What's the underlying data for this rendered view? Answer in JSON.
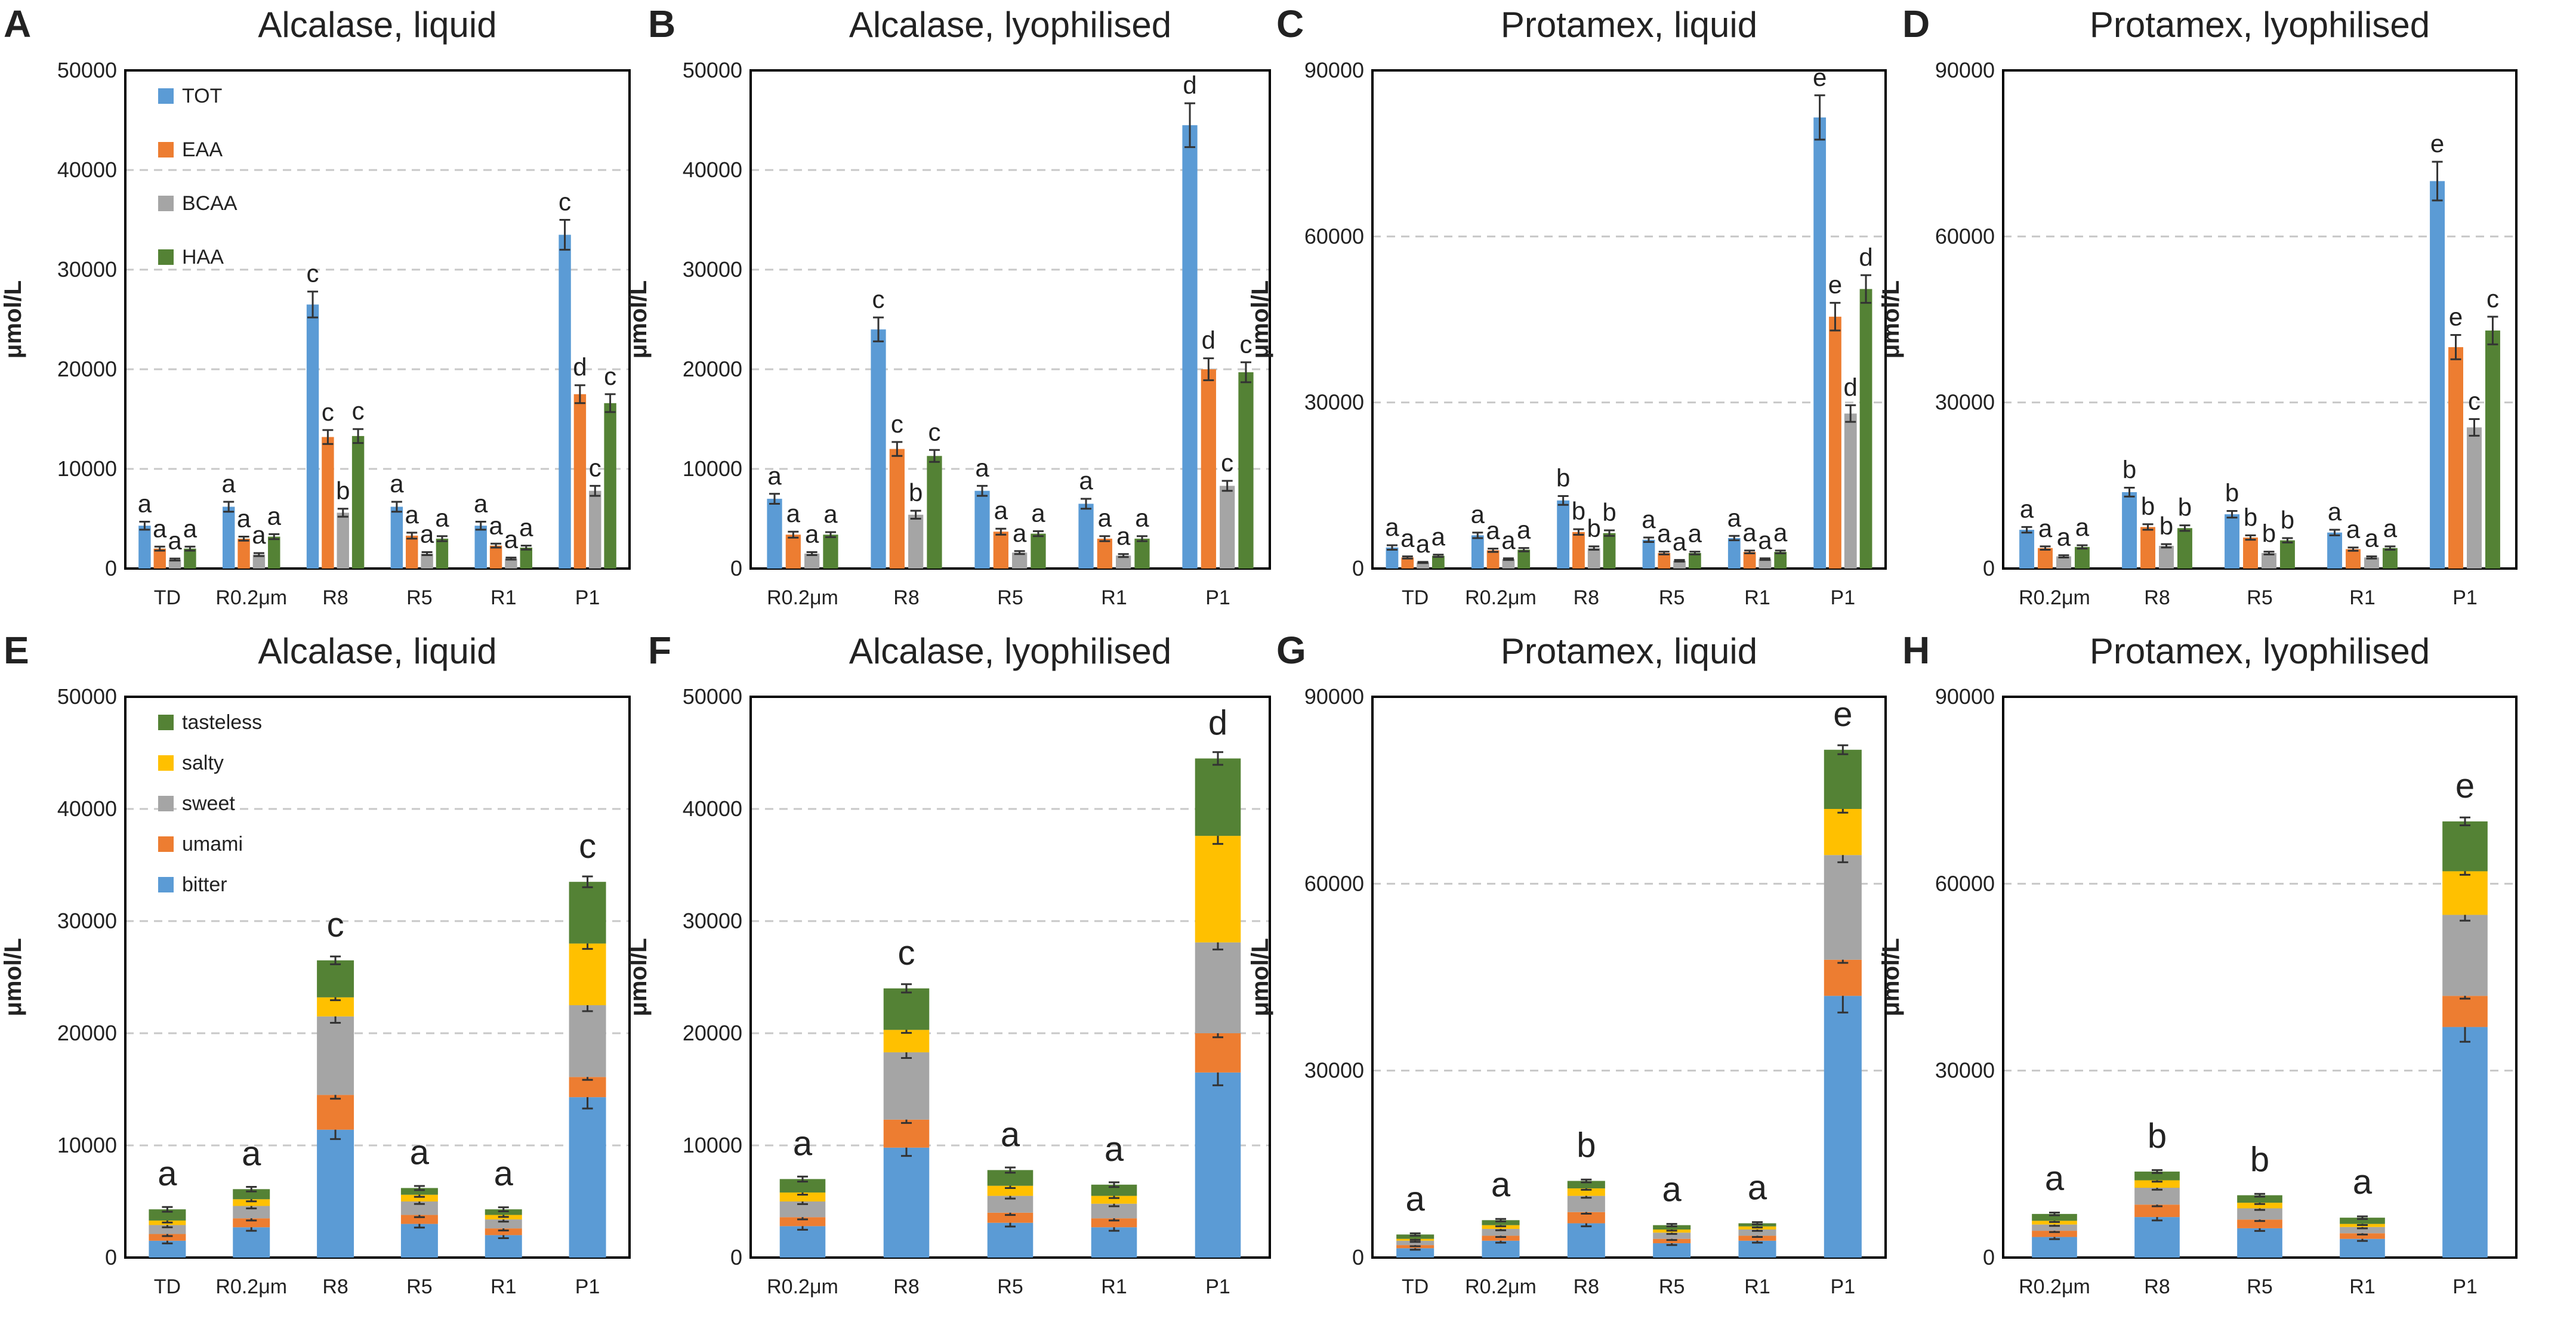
{
  "colors": {
    "TOT": "#5b9bd5",
    "EAA": "#ed7d31",
    "BCAA": "#a5a5a5",
    "HAA": "#548235",
    "tasteless": "#548235",
    "salty": "#ffc000",
    "sweet": "#a5a5a5",
    "umami": "#ed7d31",
    "bitter": "#5b9bd5"
  },
  "chart_data": [
    {
      "panel": "A",
      "type": "bar",
      "title": "Alcalase, liquid",
      "ylabel": "μmol/L",
      "ylim": [
        0,
        50000
      ],
      "yticks": [
        "0",
        "10000",
        "20000",
        "30000",
        "40000",
        "50000"
      ],
      "categories": [
        "TD",
        "R0.2μm",
        "R8",
        "R5",
        "R1",
        "P1"
      ],
      "legend": [
        "TOT",
        "EAA",
        "BCAA",
        "HAA"
      ],
      "series": [
        {
          "name": "TOT",
          "values": [
            4300,
            6200,
            26500,
            6200,
            4300,
            33500
          ],
          "errors": [
            400,
            500,
            1300,
            500,
            400,
            1500
          ]
        },
        {
          "name": "EAA",
          "values": [
            2000,
            3000,
            13200,
            3300,
            2300,
            17500
          ],
          "errors": [
            200,
            200,
            700,
            300,
            200,
            900
          ]
        },
        {
          "name": "BCAA",
          "values": [
            900,
            1400,
            5600,
            1500,
            1000,
            7800
          ],
          "errors": [
            100,
            150,
            400,
            150,
            100,
            500
          ]
        },
        {
          "name": "HAA",
          "values": [
            2000,
            3200,
            13300,
            3000,
            2100,
            16600
          ],
          "errors": [
            200,
            250,
            700,
            250,
            200,
            900
          ]
        }
      ],
      "sig": [
        [
          "a",
          "a",
          "a",
          "a"
        ],
        [
          "a",
          "a",
          "a",
          "a"
        ],
        [
          "c",
          "c",
          "b",
          "c"
        ],
        [
          "a",
          "a",
          "a",
          "a"
        ],
        [
          "a",
          "a",
          "a",
          "a"
        ],
        [
          "c",
          "d",
          "c",
          "c"
        ]
      ]
    },
    {
      "panel": "B",
      "type": "bar",
      "title": "Alcalase, lyophilised",
      "ylabel": "μmol/L",
      "ylim": [
        0,
        50000
      ],
      "yticks": [
        "0",
        "10000",
        "20000",
        "30000",
        "40000",
        "50000"
      ],
      "categories": [
        "R0.2μm",
        "R8",
        "R5",
        "R1",
        "P1"
      ],
      "series": [
        {
          "name": "TOT",
          "values": [
            7000,
            24000,
            7800,
            6500,
            44500
          ],
          "errors": [
            500,
            1200,
            500,
            500,
            2200
          ]
        },
        {
          "name": "EAA",
          "values": [
            3400,
            12000,
            3700,
            3000,
            20000
          ],
          "errors": [
            300,
            700,
            300,
            250,
            1100
          ]
        },
        {
          "name": "BCAA",
          "values": [
            1500,
            5400,
            1600,
            1300,
            8300
          ],
          "errors": [
            150,
            400,
            150,
            150,
            500
          ]
        },
        {
          "name": "HAA",
          "values": [
            3400,
            11300,
            3500,
            3000,
            19700
          ],
          "errors": [
            250,
            600,
            250,
            250,
            1000
          ]
        }
      ],
      "sig": [
        [
          "a",
          "a",
          "a",
          "a"
        ],
        [
          "c",
          "c",
          "b",
          "c"
        ],
        [
          "a",
          "a",
          "a",
          "a"
        ],
        [
          "a",
          "a",
          "a",
          "a"
        ],
        [
          "d",
          "d",
          "c",
          "c"
        ]
      ]
    },
    {
      "panel": "C",
      "type": "bar",
      "title": "Protamex, liquid",
      "ylabel": "μmol/L",
      "ylim": [
        0,
        90000
      ],
      "yticks": [
        "0",
        "30000",
        "60000",
        "90000"
      ],
      "categories": [
        "TD",
        "R0.2μm",
        "R8",
        "R5",
        "R1",
        "P1"
      ],
      "series": [
        {
          "name": "TOT",
          "values": [
            3800,
            6000,
            12300,
            5200,
            5500,
            81500
          ],
          "errors": [
            400,
            500,
            800,
            400,
            400,
            4000
          ]
        },
        {
          "name": "EAA",
          "values": [
            2000,
            3300,
            6600,
            2800,
            3000,
            45500
          ],
          "errors": [
            200,
            300,
            500,
            250,
            250,
            2500
          ]
        },
        {
          "name": "BCAA",
          "values": [
            1100,
            1700,
            3700,
            1400,
            1700,
            28000
          ],
          "errors": [
            100,
            150,
            300,
            150,
            150,
            1500
          ]
        },
        {
          "name": "HAA",
          "values": [
            2300,
            3400,
            6400,
            2800,
            3000,
            50500
          ],
          "errors": [
            200,
            300,
            500,
            250,
            250,
            2500
          ]
        }
      ],
      "sig": [
        [
          "a",
          "a",
          "a",
          "a"
        ],
        [
          "a",
          "a",
          "a",
          "a"
        ],
        [
          "b",
          "b",
          "b",
          "b"
        ],
        [
          "a",
          "a",
          "a",
          "a"
        ],
        [
          "a",
          "a",
          "a",
          "a"
        ],
        [
          "e",
          "e",
          "d",
          "d"
        ]
      ]
    },
    {
      "panel": "D",
      "type": "bar",
      "title": "Protamex, lyophilised",
      "ylabel": "μmol/L",
      "ylim": [
        0,
        90000
      ],
      "yticks": [
        "0",
        "30000",
        "60000",
        "90000"
      ],
      "categories": [
        "R0.2μm",
        "R8",
        "R5",
        "R1",
        "P1"
      ],
      "series": [
        {
          "name": "TOT",
          "values": [
            7000,
            13800,
            9800,
            6500,
            70000
          ],
          "errors": [
            500,
            800,
            600,
            500,
            3500
          ]
        },
        {
          "name": "EAA",
          "values": [
            3700,
            7500,
            5600,
            3500,
            40000
          ],
          "errors": [
            300,
            500,
            400,
            300,
            2200
          ]
        },
        {
          "name": "BCAA",
          "values": [
            2200,
            4100,
            2800,
            2000,
            25500
          ],
          "errors": [
            200,
            300,
            250,
            200,
            1500
          ]
        },
        {
          "name": "HAA",
          "values": [
            3900,
            7300,
            5100,
            3700,
            43000
          ],
          "errors": [
            300,
            500,
            400,
            300,
            2500
          ]
        }
      ],
      "sig": [
        [
          "a",
          "a",
          "a",
          "a"
        ],
        [
          "b",
          "b",
          "b",
          "b"
        ],
        [
          "b",
          "b",
          "b",
          "b"
        ],
        [
          "a",
          "a",
          "a",
          "a"
        ],
        [
          "e",
          "e",
          "c",
          "c"
        ]
      ]
    },
    {
      "panel": "E",
      "type": "stacked-bar",
      "title": "Alcalase, liquid",
      "ylabel": "μmol/L",
      "ylim": [
        0,
        50000
      ],
      "yticks": [
        "0",
        "10000",
        "20000",
        "30000",
        "40000",
        "50000"
      ],
      "categories": [
        "TD",
        "R0.2μm",
        "R8",
        "R5",
        "R1",
        "P1"
      ],
      "legend": [
        "tasteless",
        "salty",
        "sweet",
        "umami",
        "bitter"
      ],
      "series": [
        {
          "name": "bitter",
          "values": [
            1500,
            2700,
            11400,
            3000,
            2000,
            14300
          ]
        },
        {
          "name": "umami",
          "values": [
            600,
            800,
            3100,
            800,
            600,
            1800
          ]
        },
        {
          "name": "sweet",
          "values": [
            800,
            1100,
            7000,
            1200,
            800,
            6400
          ]
        },
        {
          "name": "salty",
          "values": [
            400,
            600,
            1700,
            600,
            400,
            5500
          ]
        },
        {
          "name": "tasteless",
          "values": [
            1000,
            900,
            3300,
            600,
            500,
            5500
          ]
        }
      ],
      "sig": [
        "a",
        "a",
        "c",
        "a",
        "a",
        "c"
      ]
    },
    {
      "panel": "F",
      "type": "stacked-bar",
      "title": "Alcalase, lyophilised",
      "ylabel": "μmol/L",
      "ylim": [
        0,
        50000
      ],
      "yticks": [
        "0",
        "10000",
        "20000",
        "30000",
        "40000",
        "50000"
      ],
      "categories": [
        "R0.2μm",
        "R8",
        "R5",
        "R1",
        "P1"
      ],
      "series": [
        {
          "name": "bitter",
          "values": [
            2800,
            9800,
            3100,
            2700,
            16500
          ]
        },
        {
          "name": "umami",
          "values": [
            800,
            2500,
            900,
            800,
            3500
          ]
        },
        {
          "name": "sweet",
          "values": [
            1400,
            6000,
            1500,
            1300,
            8100
          ]
        },
        {
          "name": "salty",
          "values": [
            800,
            2000,
            900,
            700,
            9500
          ]
        },
        {
          "name": "tasteless",
          "values": [
            1200,
            3700,
            1400,
            1000,
            6900
          ]
        }
      ],
      "sig": [
        "a",
        "c",
        "a",
        "a",
        "d"
      ]
    },
    {
      "panel": "G",
      "type": "stacked-bar",
      "title": "Protamex, liquid",
      "ylabel": "μmol/L",
      "ylim": [
        0,
        90000
      ],
      "yticks": [
        "0",
        "30000",
        "60000",
        "90000"
      ],
      "categories": [
        "TD",
        "R0.2μm",
        "R8",
        "R5",
        "R1",
        "P1"
      ],
      "series": [
        {
          "name": "bitter",
          "values": [
            1500,
            2700,
            5500,
            2300,
            2700,
            42000
          ]
        },
        {
          "name": "umami",
          "values": [
            500,
            800,
            1800,
            700,
            800,
            5800
          ]
        },
        {
          "name": "sweet",
          "values": [
            700,
            1100,
            2600,
            1000,
            1000,
            16800
          ]
        },
        {
          "name": "salty",
          "values": [
            300,
            600,
            1200,
            500,
            500,
            7400
          ]
        },
        {
          "name": "tasteless",
          "values": [
            700,
            800,
            1200,
            700,
            500,
            9500
          ]
        }
      ],
      "sig": [
        "a",
        "a",
        "b",
        "a",
        "a",
        "e"
      ]
    },
    {
      "panel": "H",
      "type": "stacked-bar",
      "title": "Protamex, lyophilised",
      "ylabel": "μmol/L",
      "ylim": [
        0,
        90000
      ],
      "yticks": [
        "0",
        "30000",
        "60000",
        "90000"
      ],
      "categories": [
        "R0.2μm",
        "R8",
        "R5",
        "R1",
        "P1"
      ],
      "series": [
        {
          "name": "bitter",
          "values": [
            3300,
            6500,
            4700,
            3000,
            37000
          ]
        },
        {
          "name": "umami",
          "values": [
            1000,
            2000,
            1400,
            900,
            5000
          ]
        },
        {
          "name": "sweet",
          "values": [
            1000,
            2700,
            1800,
            1000,
            13000
          ]
        },
        {
          "name": "salty",
          "values": [
            600,
            1200,
            900,
            500,
            7000
          ]
        },
        {
          "name": "tasteless",
          "values": [
            1100,
            1400,
            1200,
            1000,
            8000
          ]
        }
      ],
      "sig": [
        "a",
        "b",
        "b",
        "a",
        "e"
      ]
    }
  ]
}
